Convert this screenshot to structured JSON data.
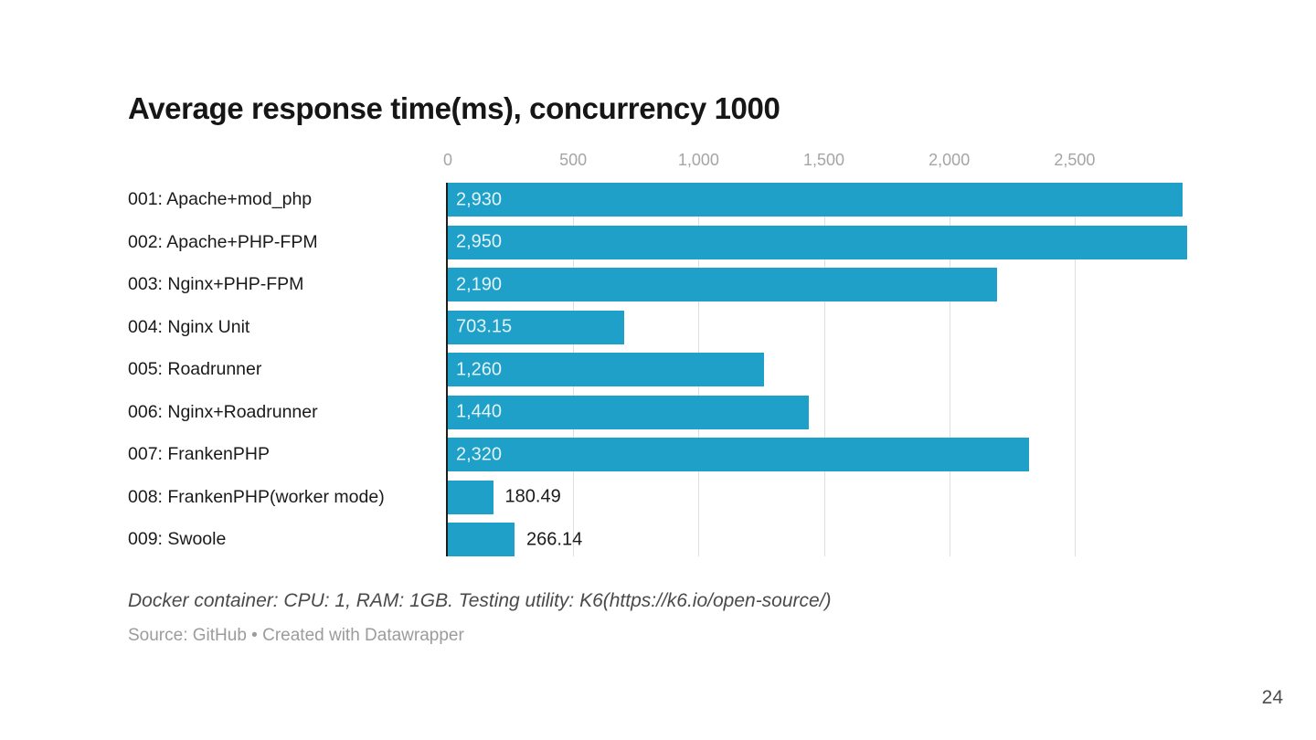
{
  "page": {
    "number": "24"
  },
  "chart": {
    "title": "Average response time(ms), concurrency 1000",
    "footnote": "Docker container: CPU: 1, RAM: 1GB. Testing utility: K6(https://k6.io/open-source/)",
    "source_line": "Source: GitHub • Created with Datawrapper"
  },
  "chart_data": {
    "type": "bar",
    "orientation": "horizontal",
    "title": "Average response time(ms), concurrency 1000",
    "categories": [
      "001: Apache+mod_php",
      "002: Apache+PHP-FPM",
      "003: Nginx+PHP-FPM",
      "004: Nginx Unit",
      "005: Roadrunner",
      "006: Nginx+Roadrunner",
      "007: FrankenPHP",
      "008: FrankenPHP(worker mode)",
      "009: Swoole"
    ],
    "values": [
      2930,
      2950,
      2190,
      703.15,
      1260,
      1440,
      2320,
      180.49,
      266.14
    ],
    "value_labels": [
      "2,930",
      "2,950",
      "2,190",
      "703.15",
      "1,260",
      "1,440",
      "2,320",
      "180.49",
      "266.14"
    ],
    "xlabel": "",
    "ylabel": "",
    "axis_ticks": [
      0,
      500,
      1000,
      1500,
      2000,
      2500
    ],
    "tick_labels": [
      "0",
      "500",
      "1,000",
      "1,500",
      "2,000",
      "2,500"
    ],
    "xlim": [
      0,
      3080
    ],
    "grid": true,
    "legend": "none",
    "bar_color": "#1ea0c8",
    "inside_value_color": "#e4f3f9",
    "outside_value_color": "#1a1a1a",
    "axis_line_color": "#1d1d1d",
    "tick_label_color": "#a5a5a5"
  }
}
